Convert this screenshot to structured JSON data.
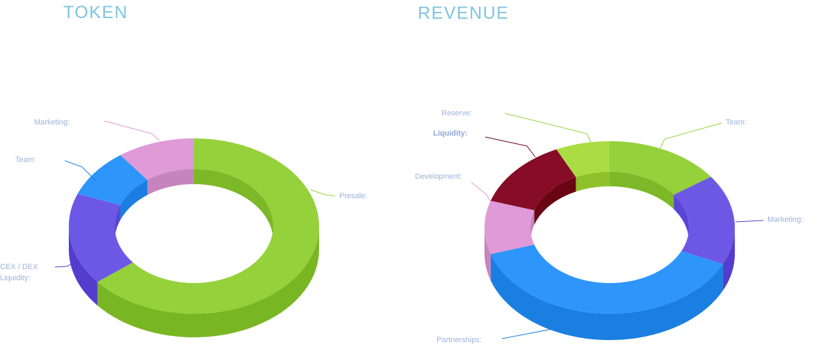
{
  "chart_data": [
    {
      "type": "pie",
      "title": "TOKEN",
      "donut": true,
      "three_d": true,
      "labels_show_values": false,
      "slices": [
        {
          "label": "Presale:",
          "value": 64,
          "color": "#94d13b",
          "side_color": "#79b624",
          "inner_color": "#7cb827"
        },
        {
          "label": "CEX / DEX\nLiquidity:",
          "value": 17,
          "color": "#6d58e6",
          "side_color": "#543ccf",
          "inner_color": "#5a45d6"
        },
        {
          "label": "Team:",
          "value": 9,
          "color": "#2e96fb",
          "side_color": "#1a7fe0",
          "inner_color": "#1a7fe0"
        },
        {
          "label": "Marketing:",
          "value": 10,
          "color": "#df9ad7",
          "side_color": "#c784bf",
          "inner_color": "#c584bd"
        }
      ]
    },
    {
      "type": "pie",
      "title": "REVENUE",
      "donut": true,
      "three_d": true,
      "labels_show_values": false,
      "slices": [
        {
          "label": "Team:",
          "value": 15,
          "color": "#94d13b",
          "side_color": "#79b624",
          "inner_color": "#7cb827"
        },
        {
          "label": "Marketing:",
          "value": 17,
          "color": "#6d58e6",
          "side_color": "#543ccf",
          "inner_color": "#5a45d6"
        },
        {
          "label": "Partnerships:",
          "value": 38,
          "color": "#2e96fb",
          "side_color": "#1a7fe0",
          "inner_color": "#1a7fe0"
        },
        {
          "label": "Development:",
          "value": 10,
          "color": "#df9ad7",
          "side_color": "#c784bf",
          "inner_color": "#c584bd"
        },
        {
          "label": "Liquidity:",
          "value": 13,
          "color": "#870c27",
          "side_color": "#6c0818",
          "inner_color": "#6a0613",
          "bold": true
        },
        {
          "label": "Reserve:",
          "value": 7,
          "color": "#aadd44",
          "side_color": "#8cc22a",
          "inner_color": "#8fc22a"
        }
      ]
    }
  ]
}
